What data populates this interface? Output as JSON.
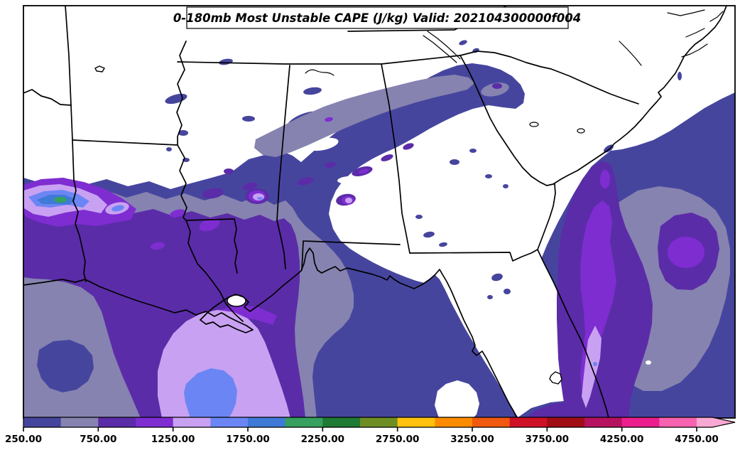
{
  "figure": {
    "title": "0-180mb Most Unstable CAPE (J/kg) Valid: 202104300000f004"
  },
  "colorbar": {
    "orientation": "horizontal",
    "extend": "max",
    "tick_labels": [
      "250.00",
      "750.00",
      "1250.00",
      "1750.00",
      "2250.00",
      "2750.00",
      "3250.00",
      "3750.00",
      "4250.00",
      "4750.00"
    ],
    "levels": [
      250,
      500,
      750,
      1000,
      1250,
      1500,
      1750,
      2000,
      2250,
      2500,
      2750,
      3000,
      3250,
      3500,
      3750,
      4000,
      4250,
      4500,
      4750
    ],
    "band_colors": [
      "#46459E",
      "#8683B0",
      "#5B2CA8",
      "#7E2DD1",
      "#C9A1F2",
      "#6B86F4",
      "#3E7AD6",
      "#35A05F",
      "#1F7A33",
      "#6E8E23",
      "#FFC20E",
      "#FF8C00",
      "#F0590F",
      "#CE1126",
      "#A00D14",
      "#B5135F",
      "#EC1E8E",
      "#F763AF"
    ],
    "arrow_color": "#F9A8D3",
    "outline_color": "#000000"
  },
  "map": {
    "background": "#FFFFFF",
    "line_color": "#000000",
    "region": "Southeastern United States, Gulf of Mexico and western Atlantic",
    "states_visible": [
      "Texas",
      "Oklahoma",
      "Arkansas",
      "Louisiana",
      "Mississippi",
      "Alabama",
      "Tennessee",
      "Georgia",
      "Florida",
      "South Carolina",
      "North Carolina",
      "Virginia"
    ]
  },
  "chart_data": {
    "type": "heatmap",
    "title": "0-180mb Most Unstable CAPE (J/kg) Valid: 202104300000f004",
    "parameter": "Most Unstable CAPE",
    "layer": "0-180mb",
    "units": "J/kg",
    "valid": "202104300000f004",
    "levels": [
      250,
      500,
      750,
      1000,
      1250,
      1500,
      1750,
      2000,
      2250,
      2500,
      2750,
      3000,
      3250,
      3500,
      3750,
      4000,
      4250,
      4500,
      4750
    ],
    "band_colors": [
      "#46459E",
      "#8683B0",
      "#5B2CA8",
      "#7E2DD1",
      "#C9A1F2",
      "#6B86F4",
      "#3E7AD6",
      "#35A05F",
      "#1F7A33",
      "#6E8E23",
      "#FFC20E",
      "#FF8C00",
      "#F0590F",
      "#CE1126",
      "#A00D14",
      "#B5135F",
      "#EC1E8E",
      "#F763AF"
    ],
    "colorbar_tick_labels": [
      "250.00",
      "750.00",
      "1250.00",
      "1750.00",
      "2250.00",
      "2750.00",
      "3250.00",
      "3750.00",
      "4250.00",
      "4750.00"
    ],
    "extend": "max",
    "legend_position": "bottom",
    "notable_regions": [
      {
        "area": "far west edge near TX/LA border (inland SW Louisiana)",
        "peak_band": "2000-2250",
        "peak_color": "green"
      },
      {
        "area": "north-central Gulf of Mexico south of Louisiana",
        "peak_band": "1500-1750",
        "peak_color": "cornflower blue core in lavender blob"
      },
      {
        "area": "lower Mississippi valley / Gulf coast band",
        "peak_band": "750-1250",
        "peak_color": "purple"
      },
      {
        "area": "central Alabama into Georgia WNW-ESE band",
        "peak_band": "500-750",
        "peak_color": "gray-purple with purple patches"
      },
      {
        "area": "western Atlantic off the Florida east coast",
        "peak_band": "1250-1500",
        "peak_color": "lavender streak in purple column"
      },
      {
        "area": "Georgia, central Florida, Carolinas interior",
        "peak_band": "below 250 (unfilled)",
        "peak_color": "white"
      }
    ]
  }
}
